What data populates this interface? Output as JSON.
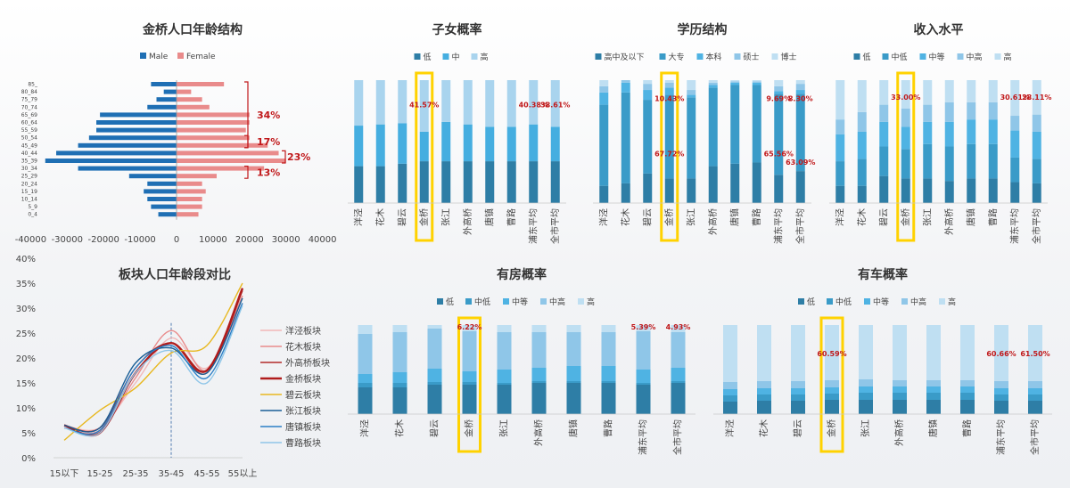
{
  "colors": {
    "bars5": [
      "#2e7ea6",
      "#3a9bc8",
      "#4fb3e3",
      "#8fc6e8",
      "#bfdff2"
    ],
    "bars3": [
      "#2e7ea6",
      "#45aee0",
      "#a9d4ee"
    ],
    "male": "#1f6fb4",
    "female": "#e98b8b",
    "highlight": "#ffd200",
    "annot": "#c0181a"
  },
  "pyramid": {
    "title": "金桥人口年龄结构",
    "legend": [
      "Male",
      "Female"
    ],
    "groups": [
      "85_",
      "80_84",
      "75_79",
      "70_74",
      "65_69",
      "60_64",
      "55_59",
      "50_54",
      "45_49",
      "40_44",
      "35_39",
      "30_34",
      "25_29",
      "20_24",
      "15_19",
      "10_14",
      "5_9",
      "0_4"
    ],
    "male": [
      -7000,
      -3500,
      -5500,
      -8000,
      -21000,
      -22000,
      -22000,
      -24000,
      -27000,
      -33000,
      -36000,
      -27000,
      -13000,
      -8000,
      -9000,
      -8000,
      -7000,
      -5000
    ],
    "female": [
      13000,
      4000,
      7000,
      9000,
      20000,
      20000,
      19000,
      20000,
      25000,
      28000,
      30000,
      24000,
      11000,
      7000,
      8000,
      7000,
      7000,
      6000
    ],
    "xticks": [
      "-40000",
      "-30000",
      "-20000",
      "-10000",
      "0",
      "10000",
      "20000",
      "30000",
      "40000"
    ],
    "brackets": [
      {
        "label": "34%",
        "from": 0,
        "to": 8
      },
      {
        "label": "17%",
        "from": 7,
        "to": 8
      },
      {
        "label": "23%",
        "from": 9,
        "to": 10
      },
      {
        "label": "13%",
        "from": 11,
        "to": 12
      }
    ]
  },
  "chart_data": [
    {
      "type": "bar",
      "title": "子女概率",
      "stacked": true,
      "categories": [
        "洋泾",
        "花木",
        "碧云",
        "金桥",
        "张江",
        "外高桥",
        "唐镇",
        "曹路",
        "浦东平均",
        "全市平均"
      ],
      "highlight": "金桥",
      "series": [
        {
          "name": "低",
          "values": [
            30,
            30,
            32,
            34,
            34,
            34,
            34,
            34,
            34,
            34
          ]
        },
        {
          "name": "中",
          "values": [
            33,
            34,
            33,
            24,
            32,
            30,
            28,
            28,
            30,
            28
          ]
        },
        {
          "name": "高",
          "values": [
            37,
            36,
            35,
            42,
            34,
            36,
            38,
            38,
            36,
            38
          ]
        }
      ],
      "annotations": [
        {
          "category": "金桥",
          "text": "41.57%"
        },
        {
          "category": "浦东平均",
          "text": "40.38%"
        },
        {
          "category": "全市平均",
          "text": "38.61%"
        }
      ]
    },
    {
      "type": "bar",
      "title": "学历结构",
      "stacked": true,
      "categories": [
        "洋泾",
        "花木",
        "碧云",
        "金桥",
        "张江",
        "外高桥",
        "唐镇",
        "曹路",
        "浦东平均",
        "全市平均"
      ],
      "highlight": "金桥",
      "series": [
        {
          "name": "高中及以下",
          "values": [
            14,
            16,
            24,
            20,
            20,
            30,
            32,
            33,
            23,
            26
          ]
        },
        {
          "name": "大专",
          "values": [
            66,
            74,
            60,
            68,
            66,
            64,
            64,
            63,
            66,
            63
          ]
        },
        {
          "name": "本科",
          "values": [
            10,
            8,
            8,
            6,
            2,
            2,
            2,
            2,
            2,
            3
          ]
        },
        {
          "name": "硕士",
          "values": [
            5,
            2,
            5,
            4,
            4,
            2,
            1,
            1,
            4,
            5
          ]
        },
        {
          "name": "博士",
          "values": [
            5,
            0,
            3,
            2,
            8,
            2,
            1,
            1,
            5,
            3
          ]
        }
      ],
      "annotations": [
        {
          "category": "金桥",
          "text": "10.43%",
          "level": "top"
        },
        {
          "category": "金桥",
          "text": "67.72%",
          "level": "mid"
        },
        {
          "category": "浦东平均",
          "text": "9.69%",
          "level": "top"
        },
        {
          "category": "全市平均",
          "text": "8.30%",
          "level": "top"
        },
        {
          "category": "浦东平均",
          "text": "65.56%",
          "level": "mid"
        },
        {
          "category": "全市平均",
          "text": "63.09%",
          "level": "mid2"
        }
      ]
    },
    {
      "type": "bar",
      "title": "收入水平",
      "stacked": true,
      "categories": [
        "洋泾",
        "花木",
        "碧云",
        "金桥",
        "张江",
        "外高桥",
        "唐镇",
        "曹路",
        "浦东平均",
        "全市平均"
      ],
      "highlight": "金桥",
      "series": [
        {
          "name": "低",
          "values": [
            14,
            14,
            22,
            20,
            20,
            18,
            20,
            20,
            17,
            16
          ]
        },
        {
          "name": "中低",
          "values": [
            20,
            22,
            24,
            24,
            28,
            28,
            28,
            28,
            20,
            20
          ]
        },
        {
          "name": "中等",
          "values": [
            22,
            22,
            20,
            18,
            18,
            20,
            20,
            20,
            22,
            22
          ]
        },
        {
          "name": "中高",
          "values": [
            12,
            16,
            14,
            15,
            14,
            16,
            14,
            14,
            12,
            14
          ]
        },
        {
          "name": "高",
          "values": [
            32,
            26,
            20,
            23,
            20,
            18,
            18,
            18,
            29,
            28
          ]
        }
      ],
      "annotations": [
        {
          "category": "金桥",
          "text": "33.00%"
        },
        {
          "category": "浦东平均",
          "text": "30.61%"
        },
        {
          "category": "全市平均",
          "text": "28.11%"
        }
      ]
    },
    {
      "type": "line",
      "title": "板块人口年龄段对比",
      "categories": [
        "15以下",
        "15-25",
        "25-35",
        "35-45",
        "45-55",
        "55以上"
      ],
      "ylim": [
        0,
        0.4
      ],
      "yticks": [
        "0%",
        "5%",
        "10%",
        "15%",
        "20%",
        "25%",
        "30%",
        "35%",
        "40%"
      ],
      "series": [
        {
          "name": "洋泾板块",
          "color": "#f2b8b8",
          "values": [
            6.5,
            6.0,
            15.0,
            24.0,
            18.0,
            31.0
          ]
        },
        {
          "name": "花木板块",
          "color": "#e98b8b",
          "values": [
            6.0,
            5.5,
            16.0,
            25.5,
            17.5,
            32.5
          ]
        },
        {
          "name": "外高桥板块",
          "color": "#b22a2a",
          "values": [
            6.5,
            6.0,
            18.0,
            23.0,
            17.0,
            33.5
          ]
        },
        {
          "name": "金桥板块",
          "color": "#b01c1c",
          "values": [
            6.5,
            5.0,
            17.0,
            23.0,
            17.5,
            34.0
          ]
        },
        {
          "name": "碧云板块",
          "color": "#e8b820",
          "values": [
            3.5,
            9.5,
            14.0,
            21.0,
            22.5,
            35.0
          ]
        },
        {
          "name": "张江板块",
          "color": "#1a5f96",
          "values": [
            6.5,
            6.0,
            19.0,
            22.0,
            17.0,
            32.0
          ]
        },
        {
          "name": "唐镇板块",
          "color": "#2b7fc6",
          "values": [
            6.0,
            5.5,
            18.0,
            22.5,
            16.0,
            31.0
          ]
        },
        {
          "name": "曹路板块",
          "color": "#8fc6e8",
          "values": [
            6.0,
            5.0,
            17.0,
            21.5,
            15.0,
            30.5
          ]
        }
      ]
    },
    {
      "type": "bar",
      "title": "有房概率",
      "stacked": true,
      "categories": [
        "洋泾",
        "花木",
        "碧云",
        "金桥",
        "张江",
        "外高桥",
        "唐镇",
        "曹路",
        "浦东平均",
        "全市平均"
      ],
      "highlight": "金桥",
      "series": [
        {
          "name": "低",
          "values": [
            30,
            30,
            33,
            33,
            33,
            35,
            35,
            35,
            33,
            35
          ]
        },
        {
          "name": "中低",
          "values": [
            5,
            5,
            3,
            3,
            2,
            2,
            2,
            2,
            2,
            2
          ]
        },
        {
          "name": "中等",
          "values": [
            10,
            12,
            15,
            12,
            15,
            15,
            17,
            17,
            15,
            15
          ]
        },
        {
          "name": "中高",
          "values": [
            45,
            45,
            45,
            45,
            42,
            40,
            38,
            38,
            43,
            40
          ]
        },
        {
          "name": "高",
          "values": [
            10,
            8,
            4,
            7,
            8,
            8,
            8,
            8,
            7,
            8
          ]
        }
      ],
      "annotations": [
        {
          "category": "金桥",
          "text": "6.22%"
        },
        {
          "category": "浦东平均",
          "text": "5.39%"
        },
        {
          "category": "全市平均",
          "text": "4.93%"
        }
      ]
    },
    {
      "type": "bar",
      "title": "有车概率",
      "stacked": true,
      "categories": [
        "洋泾",
        "花木",
        "碧云",
        "金桥",
        "张江",
        "外高桥",
        "唐镇",
        "曹路",
        "浦东平均",
        "全市平均"
      ],
      "highlight": "金桥",
      "series": [
        {
          "name": "低",
          "values": [
            14,
            15,
            15,
            16,
            16,
            16,
            16,
            16,
            15,
            15
          ]
        },
        {
          "name": "中低",
          "values": [
            7,
            7,
            7,
            7,
            8,
            8,
            8,
            8,
            7,
            7
          ]
        },
        {
          "name": "中等",
          "values": [
            7,
            7,
            7,
            7,
            7,
            7,
            7,
            7,
            7,
            7
          ]
        },
        {
          "name": "中高",
          "values": [
            8,
            8,
            8,
            8,
            8,
            7,
            7,
            7,
            8,
            8
          ]
        },
        {
          "name": "高",
          "values": [
            64,
            63,
            63,
            62,
            61,
            62,
            62,
            62,
            63,
            63
          ]
        }
      ],
      "annotations": [
        {
          "category": "金桥",
          "text": "60.59%"
        },
        {
          "category": "浦东平均",
          "text": "60.66%"
        },
        {
          "category": "全市平均",
          "text": "61.50%"
        }
      ]
    }
  ]
}
